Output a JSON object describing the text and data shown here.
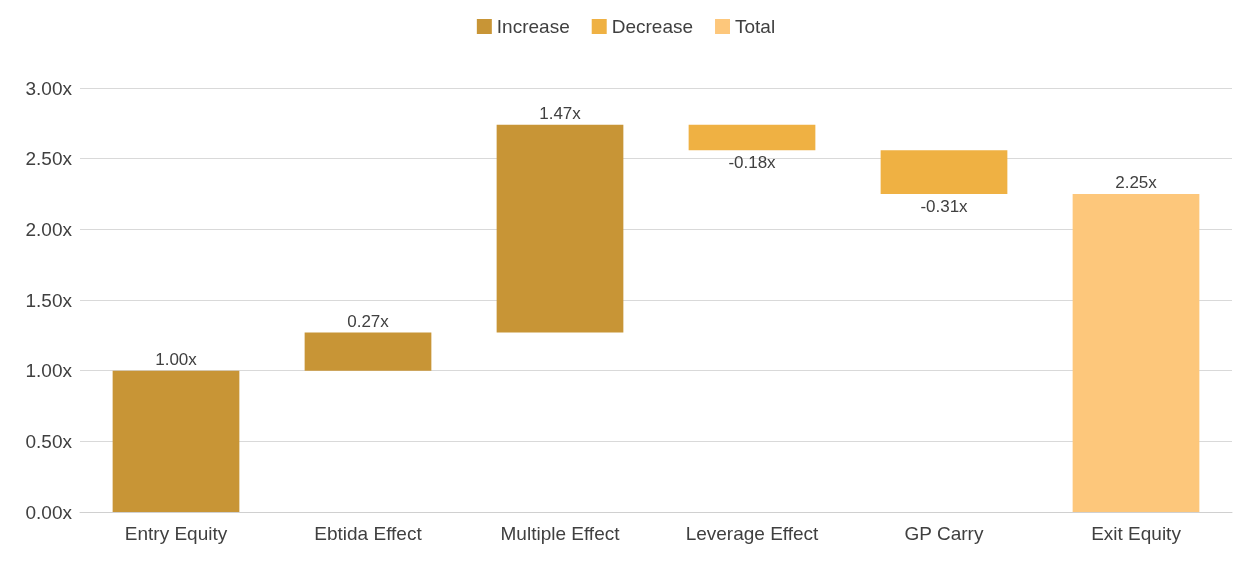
{
  "chart_data": {
    "type": "bar",
    "categories": [
      "Entry Equity",
      "Ebtida Effect",
      "Multiple Effect",
      "Leverage Effect",
      "GP Carry",
      "Exit Equity"
    ],
    "series": [
      {
        "name": "Increase",
        "color": "#c89536",
        "values": [
          1.0,
          0.27,
          1.47,
          null,
          null,
          null
        ],
        "base": [
          0,
          1.0,
          1.27,
          null,
          null,
          null
        ],
        "value_labels": [
          "1.00x",
          "0.27x",
          "1.47x",
          null,
          null,
          null
        ]
      },
      {
        "name": "Decrease",
        "color": "#efb143",
        "values": [
          null,
          null,
          null,
          -0.18,
          -0.31,
          null
        ],
        "base": [
          null,
          null,
          null,
          2.74,
          2.56,
          null
        ],
        "value_labels": [
          null,
          null,
          null,
          "-0.18x",
          "-0.31x",
          null
        ]
      },
      {
        "name": "Total",
        "color": "#fdc77b",
        "values": [
          null,
          null,
          null,
          null,
          null,
          2.25
        ],
        "base": [
          null,
          null,
          null,
          null,
          null,
          0
        ],
        "value_labels": [
          null,
          null,
          null,
          null,
          null,
          "2.25x"
        ]
      }
    ],
    "ylim": [
      0,
      3
    ],
    "yticks": [
      {
        "value": 0,
        "label": "0.00x"
      },
      {
        "value": 0.5,
        "label": "0.50x"
      },
      {
        "value": 1,
        "label": "1.00x"
      },
      {
        "value": 1.5,
        "label": "1.50x"
      },
      {
        "value": 2,
        "label": "2.00x"
      },
      {
        "value": 2.5,
        "label": "2.50x"
      },
      {
        "value": 3,
        "label": "3.00x"
      }
    ],
    "grid": "y",
    "legend": "top"
  }
}
